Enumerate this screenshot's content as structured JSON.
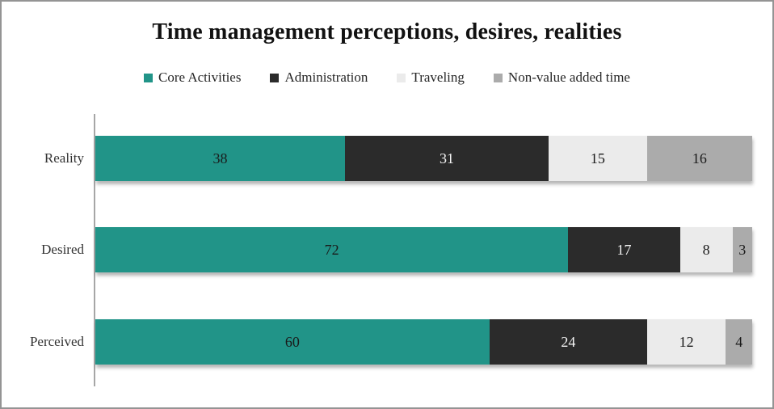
{
  "chart_data": {
    "type": "bar",
    "stacked": true,
    "orientation": "horizontal",
    "title": "Time management perceptions, desires, realities",
    "categories": [
      "Reality",
      "Desired",
      "Perceived"
    ],
    "series": [
      {
        "name": "Core Activities",
        "color": "#219488",
        "label_color": "#1a1a1a",
        "values": [
          38,
          72,
          60
        ]
      },
      {
        "name": "Administration",
        "color": "#2b2b2b",
        "label_color": "#f5f5f5",
        "values": [
          31,
          17,
          24
        ]
      },
      {
        "name": "Traveling",
        "color": "#ebebeb",
        "label_color": "#1a1a1a",
        "values": [
          15,
          8,
          12
        ]
      },
      {
        "name": "Non-value added time",
        "color": "#ababab",
        "label_color": "#1a1a1a",
        "values": [
          16,
          3,
          4
        ]
      }
    ],
    "xlim": [
      0,
      100
    ],
    "grid": false,
    "legend_position": "top",
    "data_labels": true
  }
}
